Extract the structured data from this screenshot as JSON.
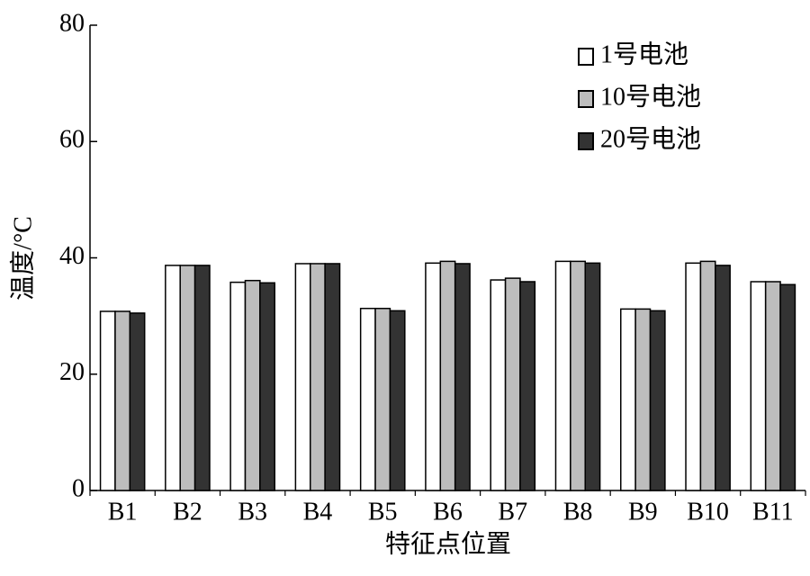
{
  "chart_data": {
    "type": "bar",
    "x_label": "特征点位置",
    "y_label": "温度/°C",
    "categories": [
      "B1",
      "B2",
      "B3",
      "B4",
      "B5",
      "B6",
      "B7",
      "B8",
      "B9",
      "B10",
      "B11"
    ],
    "series": [
      {
        "name": "1号电池",
        "color": "#ffffff",
        "values": [
          30.8,
          38.7,
          35.8,
          39.0,
          31.3,
          39.1,
          36.2,
          39.4,
          31.2,
          39.1,
          35.9
        ]
      },
      {
        "name": "10号电池",
        "color": "#bdbdbd",
        "values": [
          30.8,
          38.7,
          36.1,
          39.0,
          31.3,
          39.4,
          36.5,
          39.4,
          31.2,
          39.4,
          35.9
        ]
      },
      {
        "name": "20号电池",
        "color": "#333333",
        "values": [
          30.5,
          38.7,
          35.7,
          39.0,
          30.9,
          39.0,
          35.9,
          39.1,
          30.9,
          38.7,
          35.4
        ]
      }
    ],
    "ylim": [
      0,
      80
    ],
    "yticks": [
      0,
      20,
      40,
      60,
      80
    ],
    "legend": "upper right"
  }
}
